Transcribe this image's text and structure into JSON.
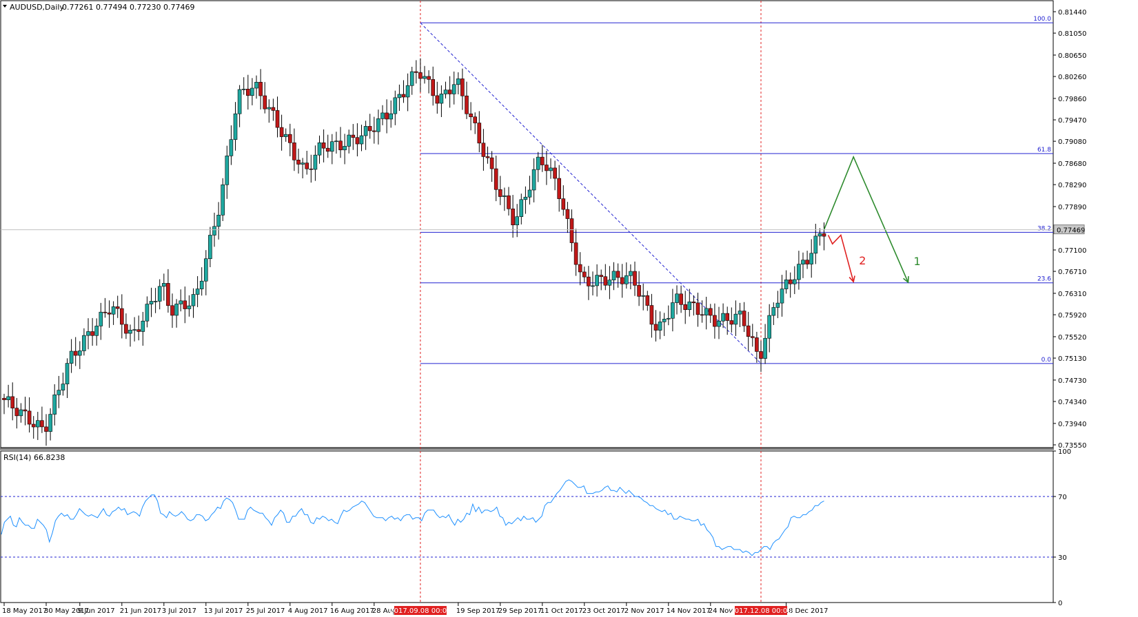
{
  "chart_data": {
    "type": "candlestick",
    "header": {
      "symbol_label": "AUDUSD,Daily",
      "ohlc_text": "0.77261 0.77494 0.77230 0.77469"
    },
    "price_axis": {
      "ylim": [
        0.7355,
        0.8144
      ],
      "tick_labels": [
        "0.81440",
        "0.81050",
        "0.80650",
        "0.80260",
        "0.79860",
        "0.79470",
        "0.79080",
        "0.78680",
        "0.78290",
        "0.77890",
        "0.77100",
        "0.76710",
        "0.76310",
        "0.75920",
        "0.75520",
        "0.75130",
        "0.74730",
        "0.74340",
        "0.73940",
        "0.73550"
      ],
      "current_price_label": "0.77469",
      "current_price": 0.77469
    },
    "x_axis": {
      "date_labels": [
        {
          "label": "18 May 2017",
          "bar": 0
        },
        {
          "label": "30 May 2017",
          "bar": 10
        },
        {
          "label": "9 Jun 2017",
          "bar": 18
        },
        {
          "label": "21 Jun 2017",
          "bar": 28
        },
        {
          "label": "3 Jul 2017",
          "bar": 38
        },
        {
          "label": "13 Jul 2017",
          "bar": 48
        },
        {
          "label": "25 Jul 2017",
          "bar": 58
        },
        {
          "label": "4 Aug 2017",
          "bar": 68
        },
        {
          "label": "16 Aug 2017",
          "bar": 78
        },
        {
          "label": "28 Aug",
          "bar": 88
        },
        {
          "label": "19 Sep 2017",
          "bar": 108
        },
        {
          "label": "29 Sep 2017",
          "bar": 118
        },
        {
          "label": "11 Oct 2017",
          "bar": 128
        },
        {
          "label": "23 Oct 2017",
          "bar": 138
        },
        {
          "label": "2 Nov 2017",
          "bar": 148
        },
        {
          "label": "14 Nov 2017",
          "bar": 158
        },
        {
          "label": "24 Nov 2",
          "bar": 168
        },
        {
          "label": "18 Dec 2017",
          "bar": 186
        }
      ],
      "highlighted_labels": [
        {
          "label": "2017.09.08 00:00",
          "bar": 99
        },
        {
          "label": "2017.12.08 00:00",
          "bar": 180
        }
      ]
    },
    "fibonacci": {
      "start_bar": 99,
      "levels": [
        {
          "label": "100.0",
          "price": 0.81237
        },
        {
          "label": "61.8",
          "price": 0.78856
        },
        {
          "label": "38.2",
          "price": 0.77422
        },
        {
          "label": "23.6",
          "price": 0.76501
        },
        {
          "label": "0.0",
          "price": 0.75031
        }
      ],
      "trendline": {
        "from": {
          "bar": 99,
          "price": 0.81237
        },
        "to": {
          "bar": 180,
          "price": 0.75031
        }
      }
    },
    "projections": [
      {
        "label": "1",
        "color": "#2e8b2e",
        "points": [
          {
            "bar": 195,
            "price": 0.77469
          },
          {
            "bar": 202,
            "price": 0.78795
          },
          {
            "bar": 215,
            "price": 0.7651
          }
        ]
      },
      {
        "label": "2",
        "color": "#e02020",
        "points": [
          {
            "bar": 196,
            "price": 0.7737
          },
          {
            "bar": 197,
            "price": 0.7721
          },
          {
            "bar": 199,
            "price": 0.7737
          },
          {
            "bar": 202,
            "price": 0.7652
          }
        ]
      }
    ],
    "rsi": {
      "label": "RSI(14) 66.8238",
      "ylim": [
        0,
        100
      ],
      "tick_labels": [
        "100",
        "70",
        "30",
        "0"
      ],
      "levels": [
        70,
        30
      ],
      "values": [
        45,
        53,
        55,
        57,
        51,
        50,
        56,
        53,
        51,
        51,
        49,
        49,
        55,
        53,
        51,
        48,
        40,
        46,
        54,
        57,
        59,
        57,
        58,
        55,
        55,
        58,
        62,
        60,
        58,
        57,
        58,
        57,
        56,
        59,
        62,
        58,
        57,
        60,
        61,
        63,
        61,
        62,
        58,
        59,
        60,
        59,
        57,
        63,
        67,
        69,
        71,
        71,
        67,
        59,
        58,
        56,
        60,
        58,
        57,
        58,
        60,
        58,
        55,
        54,
        55,
        58,
        58,
        57,
        54,
        55,
        58,
        60,
        63,
        62,
        67,
        69,
        68,
        66,
        61,
        55,
        55,
        55,
        61,
        63,
        61,
        60,
        59,
        59,
        56,
        54,
        51,
        56,
        58,
        61,
        59,
        53,
        53,
        57,
        57,
        60,
        62,
        58,
        58,
        53,
        52,
        56,
        55,
        57,
        56,
        54,
        55,
        53,
        52,
        57,
        61,
        60,
        61,
        63,
        64,
        65,
        67,
        66,
        63,
        60,
        57,
        56,
        56,
        56,
        54,
        56,
        57,
        55,
        56,
        54,
        57,
        58,
        58,
        55,
        56,
        56,
        54,
        59,
        61,
        61,
        61,
        58,
        56,
        57,
        56,
        58,
        54,
        51,
        55,
        53,
        55,
        59,
        58,
        65,
        60,
        63,
        59,
        61,
        61,
        60,
        61,
        63,
        57,
        56,
        51,
        53,
        52,
        54,
        56,
        54,
        57,
        55,
        55,
        56,
        53,
        55,
        57,
        64,
        66,
        66,
        69,
        72,
        74,
        77,
        80,
        81,
        80,
        78,
        76,
        76,
        77,
        72,
        72,
        72,
        73,
        73,
        74,
        76,
        77,
        74,
        74,
        73,
        76,
        74,
        72,
        74,
        72,
        70,
        70,
        69,
        67,
        66,
        64,
        64,
        62,
        61,
        60,
        61,
        58,
        59,
        55,
        55,
        57,
        56,
        55,
        55,
        54,
        54,
        55,
        51,
        52,
        48,
        46,
        43,
        37,
        37,
        35,
        36,
        37,
        37,
        35,
        35,
        35,
        33,
        34,
        33,
        31,
        33,
        33,
        35,
        37,
        37,
        35,
        39,
        41,
        42,
        45,
        48,
        50,
        56,
        57,
        56,
        56,
        58,
        58,
        60,
        61,
        64,
        64,
        66,
        67
      ]
    }
  }
}
